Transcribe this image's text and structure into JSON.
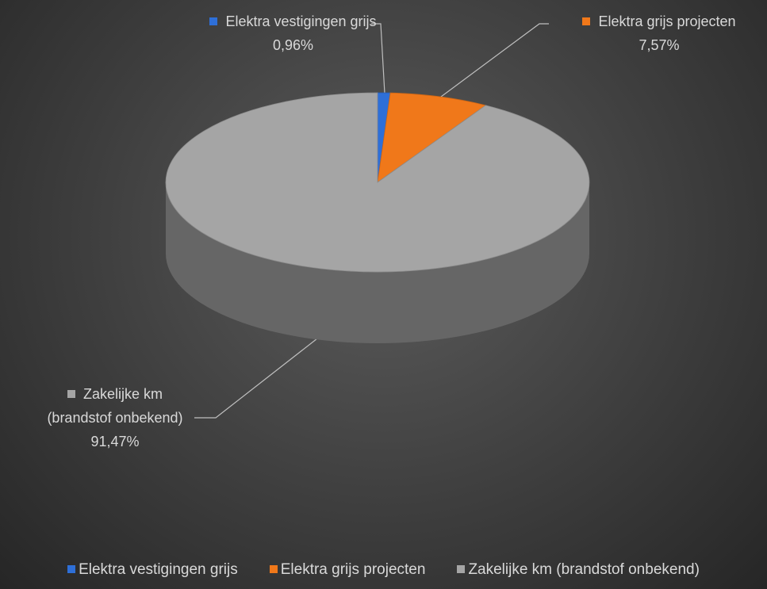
{
  "chart_data": {
    "type": "pie",
    "categories": [
      "Elektra vestigingen grijs",
      "Elektra grijs projecten",
      "Zakelijke km (brandstof onbekend)"
    ],
    "values": [
      0.96,
      7.57,
      91.47
    ],
    "value_labels": [
      "0,96%",
      "7,57%",
      "91,47%"
    ],
    "colors": [
      "#2e6fd8",
      "#f0781a",
      "#a5a5a5"
    ],
    "legend": "bottom"
  }
}
